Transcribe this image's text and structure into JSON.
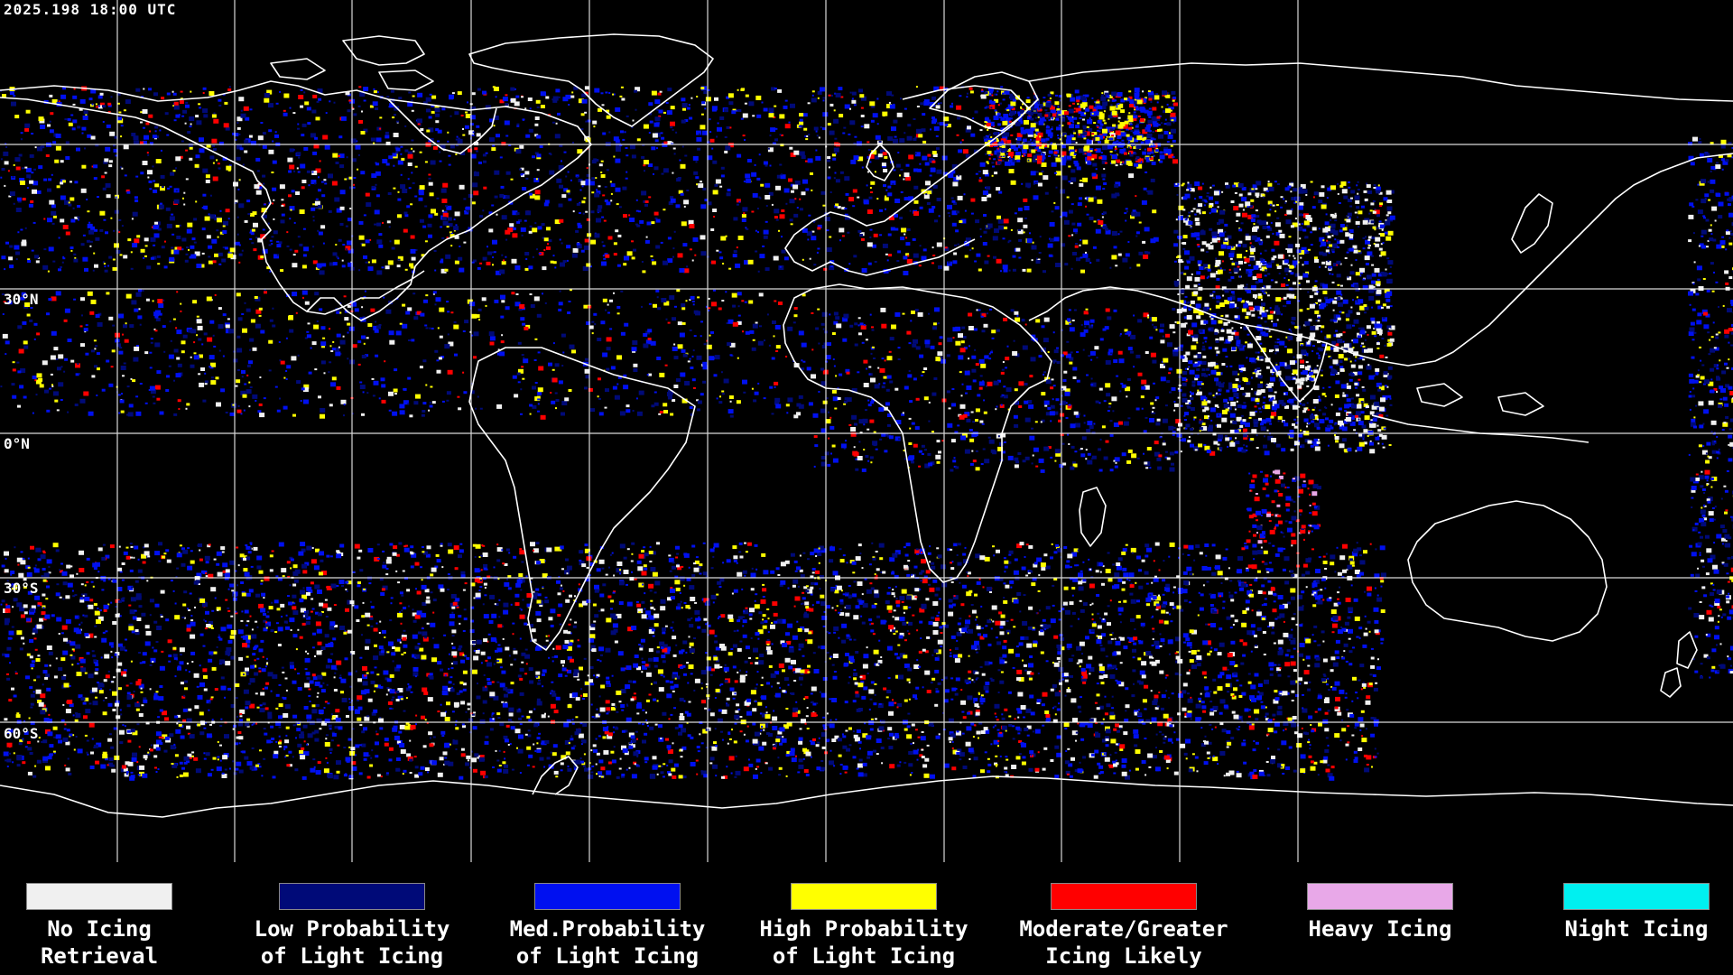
{
  "map": {
    "timestamp": "2025.198 18:00 UTC",
    "lat_labels": [
      "30°N",
      "0°N",
      "30°S",
      "60°S"
    ],
    "grid_color": "#ffffff",
    "coast_color": "#ffffff",
    "background_color": "#000000"
  },
  "legend": [
    {
      "label": "No Icing\nRetrieval",
      "color": "#f0f0f0"
    },
    {
      "label": "Low Probability\nof Light Icing",
      "color": "#000a78"
    },
    {
      "label": "Med.Probability\nof Light Icing",
      "color": "#0010f0"
    },
    {
      "label": "High Probability\nof Light Icing",
      "color": "#ffff00"
    },
    {
      "label": "Moderate/Greater\nIcing Likely",
      "color": "#ff0000"
    },
    {
      "label": "Heavy Icing",
      "color": "#e8a8e8"
    },
    {
      "label": "Night Icing",
      "color": "#00f0f0"
    }
  ]
}
